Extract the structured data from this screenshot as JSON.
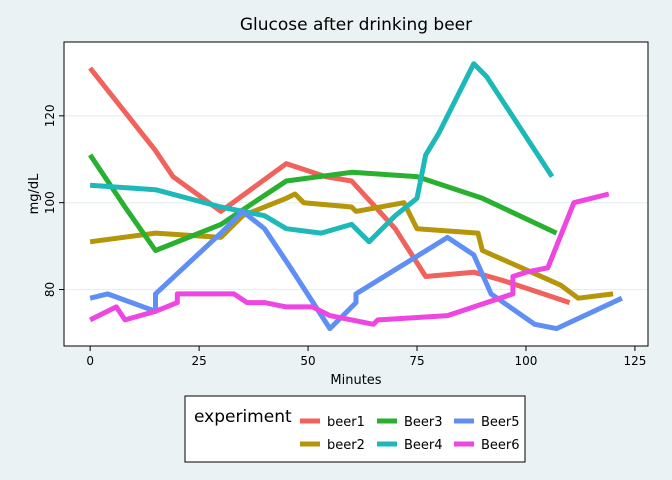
{
  "chart_data": {
    "type": "line",
    "title": "Glucose after drinking beer",
    "xlabel": "Minutes",
    "ylabel": "mg/dL",
    "xlim": [
      -6,
      128
    ],
    "ylim": [
      67,
      137
    ],
    "xticks": [
      0,
      25,
      50,
      75,
      100,
      125
    ],
    "yticks": [
      80,
      100,
      120
    ],
    "grid": true,
    "legend_position": "bottom",
    "legend_title": "experiment",
    "series": [
      {
        "name": "beer1",
        "color": "#f0625b",
        "points": [
          [
            0,
            131
          ],
          [
            15,
            112
          ],
          [
            19,
            106
          ],
          [
            30,
            98
          ],
          [
            45,
            109
          ],
          [
            54,
            106
          ],
          [
            60,
            105
          ],
          [
            70,
            94
          ],
          [
            77,
            83
          ],
          [
            88,
            84
          ],
          [
            95,
            82
          ],
          [
            104,
            79
          ],
          [
            110,
            77
          ]
        ]
      },
      {
        "name": "beer2",
        "color": "#b5960b",
        "points": [
          [
            0,
            91
          ],
          [
            15,
            93
          ],
          [
            30,
            92
          ],
          [
            35,
            97
          ],
          [
            45,
            101
          ],
          [
            47,
            102
          ],
          [
            49,
            100
          ],
          [
            60,
            99
          ],
          [
            61,
            98
          ],
          [
            72,
            100
          ],
          [
            75,
            94
          ],
          [
            89,
            93
          ],
          [
            90,
            89
          ],
          [
            99,
            85
          ],
          [
            108,
            81
          ],
          [
            112,
            78
          ],
          [
            120,
            79
          ]
        ]
      },
      {
        "name": "Beer3",
        "color": "#29b02f",
        "points": [
          [
            0,
            111
          ],
          [
            8,
            99
          ],
          [
            15,
            89
          ],
          [
            30,
            95
          ],
          [
            45,
            105
          ],
          [
            60,
            107
          ],
          [
            75,
            106
          ],
          [
            90,
            101
          ],
          [
            107,
            93
          ]
        ]
      },
      {
        "name": "Beer4",
        "color": "#1db9b8",
        "points": [
          [
            0,
            104
          ],
          [
            15,
            103
          ],
          [
            30,
            99
          ],
          [
            40,
            97
          ],
          [
            45,
            94
          ],
          [
            53,
            93
          ],
          [
            60,
            95
          ],
          [
            64,
            91
          ],
          [
            70,
            97
          ],
          [
            75,
            101
          ],
          [
            77,
            111
          ],
          [
            80,
            116
          ],
          [
            88,
            132
          ],
          [
            91,
            129
          ],
          [
            106,
            106
          ]
        ]
      },
      {
        "name": "Beer5",
        "color": "#5f8ff5",
        "points": [
          [
            0,
            78
          ],
          [
            4,
            79
          ],
          [
            15,
            75
          ],
          [
            15,
            79
          ],
          [
            30,
            93
          ],
          [
            35,
            98
          ],
          [
            40,
            94
          ],
          [
            46,
            85
          ],
          [
            55,
            71
          ],
          [
            61,
            77
          ],
          [
            61,
            79
          ],
          [
            82,
            92
          ],
          [
            88,
            88
          ],
          [
            92,
            79
          ],
          [
            102,
            72
          ],
          [
            107,
            71
          ],
          [
            122,
            78
          ]
        ]
      },
      {
        "name": "Beer6",
        "color": "#ee46e1",
        "points": [
          [
            0,
            73
          ],
          [
            6,
            76
          ],
          [
            8,
            73
          ],
          [
            15,
            75
          ],
          [
            20,
            77
          ],
          [
            20,
            79
          ],
          [
            33,
            79
          ],
          [
            36,
            77
          ],
          [
            40,
            77
          ],
          [
            45,
            76
          ],
          [
            51,
            76
          ],
          [
            55,
            74
          ],
          [
            65,
            72
          ],
          [
            66,
            73
          ],
          [
            82,
            74
          ],
          [
            97,
            79
          ],
          [
            97,
            83
          ],
          [
            100,
            84
          ],
          [
            105,
            85
          ],
          [
            111,
            100
          ],
          [
            119,
            102
          ]
        ]
      }
    ]
  }
}
